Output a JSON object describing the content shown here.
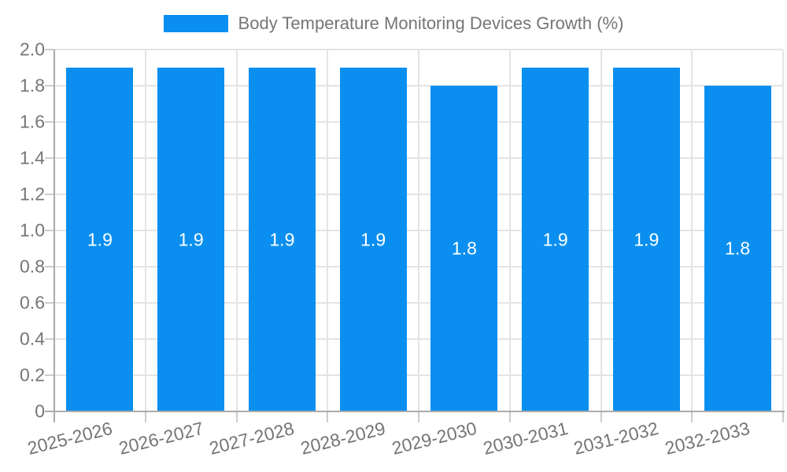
{
  "chart_data": {
    "type": "bar",
    "title": "",
    "legend": {
      "label": "Body Temperature Monitoring Devices Growth (%)",
      "position": "top-center"
    },
    "categories": [
      "2025-2026",
      "2026-2027",
      "2027-2028",
      "2028-2029",
      "2029-2030",
      "2030-2031",
      "2031-2032",
      "2032-2033"
    ],
    "values": [
      1.9,
      1.9,
      1.9,
      1.9,
      1.8,
      1.9,
      1.9,
      1.8
    ],
    "bar_value_labels": [
      "1.9",
      "1.9",
      "1.9",
      "1.9",
      "1.8",
      "1.9",
      "1.9",
      "1.8"
    ],
    "xlabel": "",
    "ylabel": "",
    "ylim": [
      0,
      2.0
    ],
    "yticks": [
      "0",
      "0.2",
      "0.4",
      "0.6",
      "0.8",
      "1.0",
      "1.2",
      "1.4",
      "1.6",
      "1.8",
      "2.0"
    ],
    "grid": true,
    "x_label_rotation_deg": -14,
    "colors": {
      "bar": "#0A8FF0",
      "grid": "#e4e4e4",
      "axis": "#ababab",
      "tick": "#cccccc",
      "tick_label": "#757575",
      "bar_value": "#ffffff",
      "background": "#ffffff"
    }
  }
}
